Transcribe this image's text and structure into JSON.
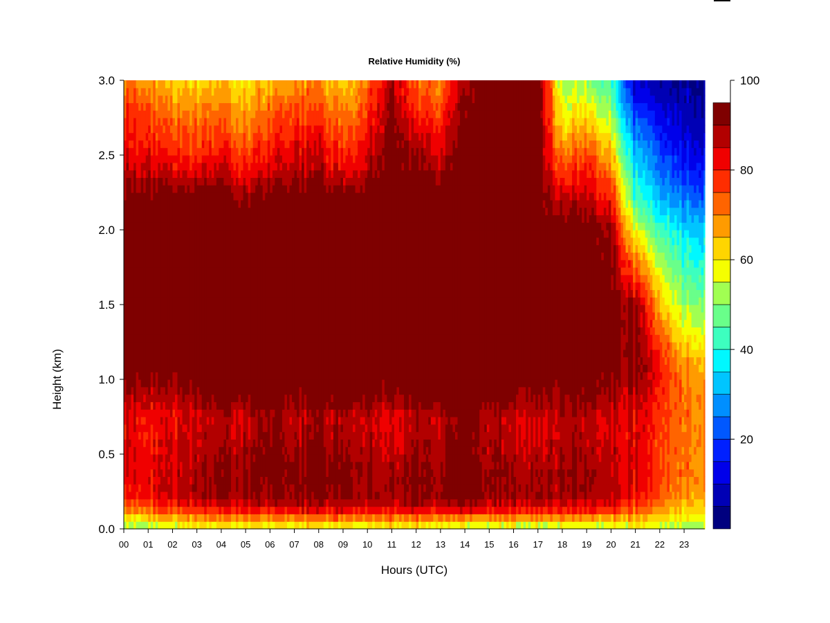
{
  "chart_data": {
    "type": "heatmap",
    "title": "Relative Humidity (%)",
    "xlabel": "Hours (UTC)",
    "ylabel": "Height (km)",
    "xlim": [
      0,
      23.85
    ],
    "ylim": [
      0,
      3.0
    ],
    "x_ticks": [
      "00",
      "01",
      "02",
      "03",
      "04",
      "05",
      "06",
      "07",
      "08",
      "09",
      "10",
      "11",
      "12",
      "13",
      "14",
      "15",
      "16",
      "17",
      "18",
      "19",
      "20",
      "21",
      "22",
      "23"
    ],
    "y_ticks": [
      {
        "value": 0.0,
        "label": "0.0"
      },
      {
        "value": 0.5,
        "label": "0.5"
      },
      {
        "value": 1.0,
        "label": "1.0"
      },
      {
        "value": 1.5,
        "label": "1.5"
      },
      {
        "value": 2.0,
        "label": "2.0"
      },
      {
        "value": 2.5,
        "label": "2.5"
      },
      {
        "value": 3.0,
        "label": "3.0"
      }
    ],
    "colorbar": {
      "min": 5,
      "max": 100,
      "step": 5,
      "ticks": [
        {
          "value": 20,
          "label": "20"
        },
        {
          "value": 40,
          "label": "40"
        },
        {
          "value": 60,
          "label": "60"
        },
        {
          "value": 80,
          "label": "80"
        },
        {
          "value": 100,
          "label": "100"
        }
      ],
      "colors": [
        "#00007f",
        "#0000b5",
        "#0000ea",
        "#0020ff",
        "#0058ff",
        "#008fff",
        "#00c5ff",
        "#00f8ff",
        "#3dffbf",
        "#69ff8a",
        "#a1ff52",
        "#f5ff00",
        "#ffd500",
        "#ff9b00",
        "#ff6400",
        "#ff2d00",
        "#f00000",
        "#b20000",
        "#7f0000"
      ]
    },
    "height_km": [
      0.0,
      0.05,
      0.1,
      0.2,
      0.35,
      0.5,
      0.75,
      0.9,
      1.1,
      1.5,
      2.0,
      2.2,
      2.4,
      2.6,
      2.8,
      3.0
    ],
    "profiles": [
      {
        "hour": 0,
        "rh": [
          55,
          60,
          72,
          82,
          88,
          90,
          88,
          94,
          100,
          100,
          100,
          100,
          92,
          86,
          82,
          76
        ]
      },
      {
        "hour": 1,
        "rh": [
          58,
          62,
          74,
          86,
          88,
          86,
          86,
          92,
          100,
          100,
          100,
          100,
          90,
          84,
          80,
          72
        ]
      },
      {
        "hour": 2,
        "rh": [
          60,
          66,
          78,
          90,
          92,
          90,
          88,
          94,
          100,
          100,
          100,
          100,
          90,
          82,
          76,
          68
        ]
      },
      {
        "hour": 3,
        "rh": [
          62,
          68,
          80,
          92,
          94,
          92,
          90,
          96,
          100,
          100,
          100,
          100,
          88,
          80,
          74,
          66
        ]
      },
      {
        "hour": 4,
        "rh": [
          62,
          68,
          82,
          94,
          96,
          94,
          92,
          100,
          100,
          100,
          100,
          100,
          90,
          82,
          76,
          68
        ]
      },
      {
        "hour": 5,
        "rh": [
          62,
          68,
          82,
          94,
          96,
          94,
          90,
          100,
          100,
          100,
          100,
          96,
          86,
          78,
          72,
          66
        ]
      },
      {
        "hour": 6,
        "rh": [
          62,
          68,
          82,
          96,
          98,
          100,
          96,
          100,
          100,
          100,
          100,
          100,
          90,
          84,
          78,
          70
        ]
      },
      {
        "hour": 7,
        "rh": [
          62,
          70,
          84,
          96,
          96,
          94,
          90,
          96,
          100,
          100,
          100,
          100,
          92,
          86,
          80,
          72
        ]
      },
      {
        "hour": 8,
        "rh": [
          62,
          70,
          84,
          96,
          98,
          96,
          94,
          100,
          100,
          100,
          100,
          100,
          92,
          88,
          80,
          74
        ]
      },
      {
        "hour": 9,
        "rh": [
          62,
          70,
          84,
          96,
          98,
          96,
          92,
          100,
          100,
          100,
          100,
          100,
          88,
          80,
          74,
          66
        ]
      },
      {
        "hour": 10,
        "rh": [
          62,
          70,
          84,
          96,
          96,
          94,
          92,
          100,
          100,
          100,
          100,
          100,
          94,
          88,
          82,
          78
        ]
      },
      {
        "hour": 11,
        "rh": [
          62,
          70,
          84,
          94,
          94,
          90,
          88,
          96,
          100,
          100,
          100,
          100,
          100,
          100,
          98,
          94
        ]
      },
      {
        "hour": 12,
        "rh": [
          62,
          70,
          84,
          96,
          96,
          94,
          92,
          100,
          100,
          100,
          100,
          100,
          96,
          90,
          82,
          76
        ]
      },
      {
        "hour": 13,
        "rh": [
          62,
          70,
          84,
          96,
          96,
          94,
          92,
          100,
          100,
          100,
          100,
          100,
          94,
          88,
          82,
          76
        ]
      },
      {
        "hour": 14,
        "rh": [
          60,
          66,
          84,
          100,
          100,
          100,
          100,
          100,
          100,
          100,
          100,
          100,
          100,
          100,
          98,
          94
        ]
      },
      {
        "hour": 15,
        "rh": [
          58,
          66,
          82,
          94,
          96,
          94,
          92,
          100,
          100,
          100,
          100,
          100,
          100,
          100,
          100,
          100
        ]
      },
      {
        "hour": 16,
        "rh": [
          58,
          66,
          82,
          94,
          94,
          92,
          90,
          96,
          100,
          100,
          100,
          100,
          100,
          100,
          100,
          100
        ]
      },
      {
        "hour": 17,
        "rh": [
          58,
          66,
          82,
          94,
          94,
          92,
          90,
          96,
          100,
          100,
          100,
          100,
          100,
          100,
          100,
          100
        ]
      },
      {
        "hour": 18,
        "rh": [
          58,
          66,
          82,
          94,
          96,
          94,
          92,
          98,
          100,
          100,
          100,
          92,
          80,
          70,
          62,
          56
        ]
      },
      {
        "hour": 19,
        "rh": [
          60,
          66,
          82,
          94,
          96,
          94,
          92,
          98,
          100,
          100,
          100,
          92,
          86,
          76,
          66,
          56
        ]
      },
      {
        "hour": 20,
        "rh": [
          60,
          66,
          80,
          92,
          94,
          92,
          90,
          94,
          100,
          100,
          96,
          86,
          76,
          66,
          56,
          48
        ]
      },
      {
        "hour": 21,
        "rh": [
          62,
          66,
          76,
          86,
          88,
          88,
          88,
          92,
          96,
          94,
          60,
          48,
          40,
          32,
          22,
          12
        ]
      },
      {
        "hour": 22,
        "rh": [
          58,
          62,
          70,
          78,
          80,
          80,
          82,
          84,
          86,
          70,
          48,
          36,
          30,
          22,
          16,
          10
        ]
      },
      {
        "hour": 23,
        "rh": [
          56,
          60,
          66,
          72,
          76,
          76,
          76,
          76,
          72,
          56,
          40,
          30,
          22,
          16,
          12,
          10
        ]
      }
    ]
  }
}
